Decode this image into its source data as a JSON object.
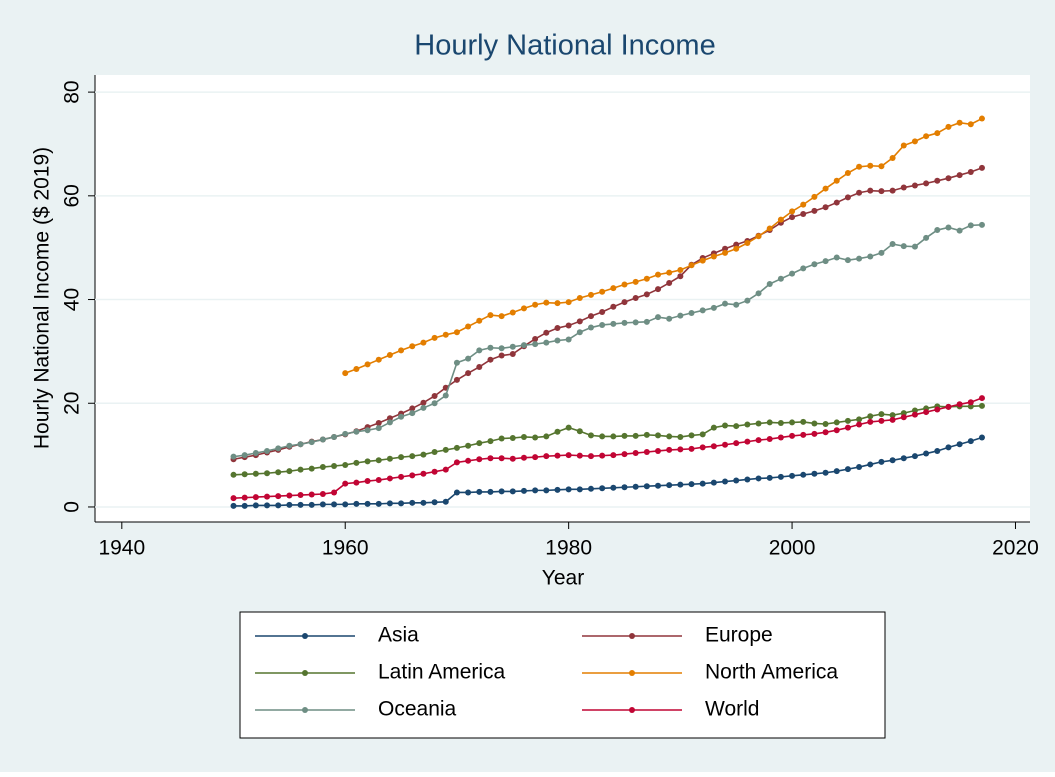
{
  "chart_data": {
    "type": "line",
    "title": "Hourly National Income",
    "x_label": "Year",
    "y_label": "Hourly National Income ($ 2019)",
    "x": [
      1950,
      1951,
      1952,
      1953,
      1954,
      1955,
      1956,
      1957,
      1958,
      1959,
      1960,
      1961,
      1962,
      1963,
      1964,
      1965,
      1966,
      1967,
      1968,
      1969,
      1970,
      1971,
      1972,
      1973,
      1974,
      1975,
      1976,
      1977,
      1978,
      1979,
      1980,
      1981,
      1982,
      1983,
      1984,
      1985,
      1986,
      1987,
      1988,
      1989,
      1990,
      1991,
      1992,
      1993,
      1994,
      1995,
      1996,
      1997,
      1998,
      1999,
      2000,
      2001,
      2002,
      2003,
      2004,
      2005,
      2006,
      2007,
      2008,
      2009,
      2010,
      2011,
      2012,
      2013,
      2014,
      2015,
      2016,
      2017
    ],
    "series": [
      {
        "name": "Asia",
        "color": "#1a476f",
        "values": [
          0.2,
          0.2,
          0.3,
          0.3,
          0.3,
          0.4,
          0.4,
          0.4,
          0.5,
          0.5,
          0.5,
          0.6,
          0.6,
          0.6,
          0.7,
          0.7,
          0.8,
          0.8,
          0.9,
          1.0,
          2.8,
          2.8,
          2.9,
          2.9,
          3.0,
          3.0,
          3.1,
          3.2,
          3.2,
          3.3,
          3.4,
          3.4,
          3.5,
          3.6,
          3.7,
          3.8,
          3.9,
          4.0,
          4.1,
          4.2,
          4.3,
          4.4,
          4.5,
          4.7,
          4.9,
          5.1,
          5.3,
          5.5,
          5.6,
          5.8,
          6.0,
          6.2,
          6.4,
          6.6,
          6.9,
          7.3,
          7.7,
          8.2,
          8.7,
          9.0,
          9.4,
          9.8,
          10.3,
          10.8,
          11.5,
          12.1,
          12.7,
          13.4
        ]
      },
      {
        "name": "Europe",
        "color": "#90353b",
        "values": [
          9.2,
          9.6,
          10.0,
          10.5,
          11.0,
          11.6,
          12.1,
          12.6,
          13.0,
          13.5,
          14.0,
          14.6,
          15.4,
          16.2,
          17.1,
          18.0,
          19.0,
          20.1,
          21.4,
          23.0,
          24.5,
          25.8,
          27.0,
          28.4,
          29.2,
          29.5,
          31.0,
          32.4,
          33.6,
          34.5,
          35.0,
          35.8,
          36.8,
          37.6,
          38.6,
          39.5,
          40.3,
          41.0,
          42.0,
          43.2,
          44.5,
          46.7,
          48.0,
          48.9,
          49.8,
          50.6,
          51.3,
          52.3,
          53.4,
          54.8,
          55.9,
          56.5,
          57.1,
          57.8,
          58.7,
          59.7,
          60.6,
          61.0,
          60.9,
          61.0,
          61.6,
          62.0,
          62.4,
          62.9,
          63.4,
          64.0,
          64.6,
          65.4
        ]
      },
      {
        "name": "Latin America",
        "color": "#55752f",
        "values": [
          6.2,
          6.3,
          6.4,
          6.5,
          6.7,
          6.9,
          7.2,
          7.4,
          7.7,
          7.9,
          8.1,
          8.5,
          8.8,
          9.0,
          9.3,
          9.6,
          9.8,
          10.1,
          10.6,
          11.0,
          11.4,
          11.8,
          12.3,
          12.7,
          13.2,
          13.3,
          13.5,
          13.4,
          13.6,
          14.5,
          15.3,
          14.6,
          13.8,
          13.6,
          13.6,
          13.7,
          13.7,
          13.9,
          13.8,
          13.6,
          13.5,
          13.8,
          14.0,
          15.3,
          15.7,
          15.6,
          15.9,
          16.1,
          16.3,
          16.2,
          16.3,
          16.4,
          16.1,
          16.0,
          16.3,
          16.6,
          16.9,
          17.5,
          17.9,
          17.7,
          18.1,
          18.6,
          19.0,
          19.4,
          19.3,
          19.4,
          19.4,
          19.5
        ]
      },
      {
        "name": "North America",
        "color": "#e37e00",
        "values": [
          null,
          null,
          null,
          null,
          null,
          null,
          null,
          null,
          null,
          null,
          25.8,
          26.6,
          27.5,
          28.4,
          29.3,
          30.2,
          31.0,
          31.7,
          32.6,
          33.2,
          33.7,
          34.8,
          35.9,
          37.0,
          36.8,
          37.5,
          38.3,
          39.0,
          39.4,
          39.3,
          39.5,
          40.3,
          40.9,
          41.5,
          42.2,
          42.9,
          43.4,
          44.0,
          44.8,
          45.2,
          45.7,
          46.6,
          47.5,
          48.3,
          49.0,
          49.8,
          50.9,
          52.2,
          53.7,
          55.4,
          57.0,
          58.3,
          59.8,
          61.4,
          62.9,
          64.4,
          65.6,
          65.8,
          65.7,
          67.3,
          69.7,
          70.5,
          71.5,
          72.1,
          73.3,
          74.1,
          73.8,
          74.9
        ]
      },
      {
        "name": "Oceania",
        "color": "#6e8e84",
        "values": [
          9.7,
          10.0,
          10.4,
          10.8,
          11.3,
          11.8,
          12.1,
          12.5,
          13.0,
          13.5,
          14.1,
          14.5,
          14.8,
          15.2,
          16.3,
          17.4,
          18.1,
          19.1,
          20.0,
          21.5,
          27.8,
          28.6,
          30.2,
          30.7,
          30.6,
          30.9,
          31.2,
          31.4,
          31.7,
          32.1,
          32.3,
          33.7,
          34.6,
          35.1,
          35.3,
          35.5,
          35.6,
          35.7,
          36.6,
          36.3,
          36.9,
          37.4,
          37.9,
          38.4,
          39.2,
          39.0,
          39.8,
          41.2,
          43.0,
          44.0,
          45.0,
          46.0,
          46.8,
          47.4,
          48.1,
          47.6,
          47.9,
          48.3,
          49.0,
          50.7,
          50.3,
          50.2,
          51.9,
          53.4,
          53.9,
          53.3,
          54.3,
          54.4
        ]
      },
      {
        "name": "World",
        "color": "#c10534",
        "values": [
          1.7,
          1.8,
          1.9,
          2.0,
          2.1,
          2.2,
          2.3,
          2.4,
          2.5,
          2.8,
          4.5,
          4.7,
          5.0,
          5.2,
          5.5,
          5.8,
          6.1,
          6.4,
          6.8,
          7.2,
          8.6,
          8.9,
          9.2,
          9.4,
          9.4,
          9.3,
          9.5,
          9.6,
          9.8,
          9.9,
          10.0,
          9.9,
          9.8,
          9.9,
          10.0,
          10.2,
          10.4,
          10.6,
          10.8,
          11.0,
          11.1,
          11.2,
          11.5,
          11.7,
          12.0,
          12.3,
          12.6,
          12.9,
          13.1,
          13.4,
          13.7,
          13.9,
          14.1,
          14.4,
          14.8,
          15.3,
          15.9,
          16.4,
          16.6,
          16.8,
          17.3,
          17.8,
          18.3,
          18.8,
          19.3,
          19.8,
          20.2,
          21.0
        ]
      }
    ],
    "xlim": [
      1937.6,
      2021.3
    ],
    "xticks": [
      1940,
      1960,
      1980,
      2000,
      2020
    ],
    "ylim": [
      -2.9,
      83.3
    ],
    "yticks": [
      0,
      20,
      40,
      60,
      80
    ],
    "grid": true,
    "legend": "bottom",
    "markers": true
  }
}
